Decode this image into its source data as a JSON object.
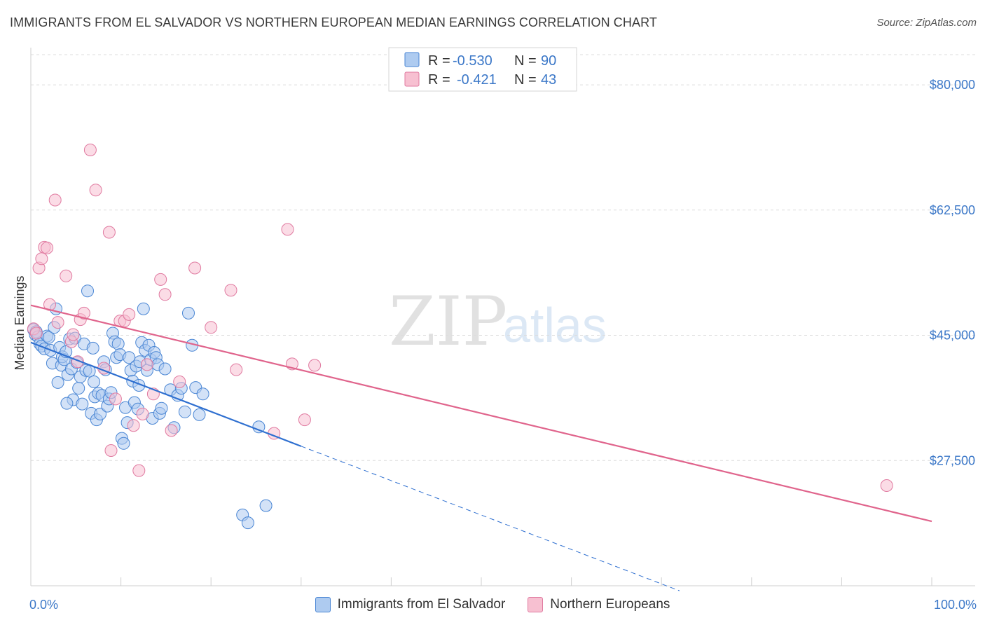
{
  "header": {
    "title": "IMMIGRANTS FROM EL SALVADOR VS NORTHERN EUROPEAN MEDIAN EARNINGS CORRELATION CHART",
    "source": "Source: ZipAtlas.com"
  },
  "watermark": {
    "zip": "ZIP",
    "atlas": "atlas"
  },
  "colors": {
    "blue_fill": "#aecbf0",
    "blue_stroke": "#4a86d4",
    "blue_line": "#2e6fd0",
    "pink_fill": "#f7c0d1",
    "pink_stroke": "#e07aa0",
    "pink_line": "#e0648c",
    "accent_text": "#3c78c8"
  },
  "chart_data": {
    "type": "scatter",
    "title": "IMMIGRANTS FROM EL SALVADOR VS NORTHERN EUROPEAN MEDIAN EARNINGS CORRELATION CHART",
    "xlabel": "",
    "ylabel": "Median Earnings",
    "xlim": [
      0,
      100
    ],
    "ylim": [
      10000,
      85000
    ],
    "x_tick_labels": [
      "0.0%",
      "100.0%"
    ],
    "y_ticks": [
      27500,
      45000,
      62500,
      80000
    ],
    "y_tick_labels": [
      "$27,500",
      "$45,000",
      "$62,500",
      "$80,000"
    ],
    "grid": true,
    "legend_stats": [
      {
        "r_label": "R =",
        "r_value": "-0.530",
        "n_label": "N =",
        "n_value": "90"
      },
      {
        "r_label": "R =",
        "r_value": "-0.421",
        "n_label": "N =",
        "n_value": "43"
      }
    ],
    "series": [
      {
        "name": "Immigrants from El Salvador",
        "r": -0.53,
        "n": 90,
        "trend": {
          "x0": 0,
          "y0": 44000,
          "x1": 30,
          "y1": 29500,
          "dash_x1": 72,
          "dash_y1": 9300
        },
        "points": [
          [
            0.3,
            45800
          ],
          [
            0.5,
            45100
          ],
          [
            0.6,
            45500
          ],
          [
            0.8,
            44800
          ],
          [
            1.0,
            43800
          ],
          [
            1.2,
            43500
          ],
          [
            1.5,
            43100
          ],
          [
            1.8,
            44900
          ],
          [
            2.0,
            44700
          ],
          [
            2.2,
            42900
          ],
          [
            2.4,
            41100
          ],
          [
            2.6,
            46100
          ],
          [
            2.8,
            48700
          ],
          [
            3.0,
            38400
          ],
          [
            3.2,
            43300
          ],
          [
            3.4,
            40800
          ],
          [
            3.5,
            42000
          ],
          [
            3.7,
            41600
          ],
          [
            3.9,
            42700
          ],
          [
            4.1,
            39500
          ],
          [
            4.3,
            44500
          ],
          [
            4.5,
            40300
          ],
          [
            4.7,
            36000
          ],
          [
            4.9,
            44600
          ],
          [
            5.1,
            41200
          ],
          [
            5.3,
            37600
          ],
          [
            5.5,
            39200
          ],
          [
            5.7,
            35400
          ],
          [
            5.9,
            43800
          ],
          [
            6.1,
            40100
          ],
          [
            6.3,
            51200
          ],
          [
            6.5,
            40000
          ],
          [
            6.7,
            34100
          ],
          [
            6.9,
            43200
          ],
          [
            7.1,
            36400
          ],
          [
            7.3,
            33200
          ],
          [
            7.5,
            36900
          ],
          [
            7.7,
            34000
          ],
          [
            7.9,
            36600
          ],
          [
            8.1,
            41300
          ],
          [
            8.3,
            40200
          ],
          [
            8.5,
            35100
          ],
          [
            8.7,
            36100
          ],
          [
            8.9,
            37000
          ],
          [
            9.1,
            45300
          ],
          [
            9.3,
            44100
          ],
          [
            9.5,
            41900
          ],
          [
            9.7,
            43800
          ],
          [
            9.9,
            42300
          ],
          [
            10.1,
            30600
          ],
          [
            10.3,
            29900
          ],
          [
            10.5,
            34900
          ],
          [
            10.7,
            32800
          ],
          [
            10.9,
            41900
          ],
          [
            11.1,
            40100
          ],
          [
            11.3,
            38600
          ],
          [
            11.5,
            35600
          ],
          [
            11.7,
            40700
          ],
          [
            11.9,
            34700
          ],
          [
            12.1,
            41300
          ],
          [
            12.3,
            44000
          ],
          [
            12.5,
            48700
          ],
          [
            12.7,
            42900
          ],
          [
            12.9,
            40100
          ],
          [
            13.1,
            43600
          ],
          [
            13.3,
            41600
          ],
          [
            13.5,
            33400
          ],
          [
            13.7,
            42600
          ],
          [
            13.9,
            41900
          ],
          [
            14.1,
            40900
          ],
          [
            14.3,
            34100
          ],
          [
            14.5,
            34800
          ],
          [
            14.9,
            40300
          ],
          [
            15.5,
            37400
          ],
          [
            15.9,
            32100
          ],
          [
            16.3,
            36600
          ],
          [
            16.7,
            37600
          ],
          [
            17.1,
            34300
          ],
          [
            17.5,
            48100
          ],
          [
            17.9,
            43600
          ],
          [
            18.3,
            37700
          ],
          [
            18.7,
            33900
          ],
          [
            19.1,
            36800
          ],
          [
            23.5,
            19900
          ],
          [
            24.1,
            18800
          ],
          [
            25.3,
            32200
          ],
          [
            26.1,
            21200
          ],
          [
            4.0,
            35500
          ],
          [
            7.0,
            38500
          ],
          [
            12.0,
            38000
          ]
        ]
      },
      {
        "name": "Northern Europeans",
        "r": -0.421,
        "n": 43,
        "trend": {
          "x0": 0,
          "y0": 49200,
          "x1": 100,
          "y1": 19000
        },
        "points": [
          [
            0.3,
            45900
          ],
          [
            0.6,
            45300
          ],
          [
            0.9,
            54400
          ],
          [
            1.2,
            55700
          ],
          [
            1.5,
            57300
          ],
          [
            1.8,
            57200
          ],
          [
            2.1,
            49300
          ],
          [
            2.7,
            63900
          ],
          [
            3.9,
            53300
          ],
          [
            4.5,
            44100
          ],
          [
            4.7,
            45100
          ],
          [
            5.2,
            41300
          ],
          [
            5.5,
            47200
          ],
          [
            5.9,
            48100
          ],
          [
            6.6,
            70900
          ],
          [
            7.2,
            65300
          ],
          [
            8.1,
            40400
          ],
          [
            8.7,
            59400
          ],
          [
            8.9,
            28900
          ],
          [
            9.4,
            36100
          ],
          [
            9.9,
            47000
          ],
          [
            10.4,
            47000
          ],
          [
            10.9,
            47900
          ],
          [
            11.4,
            32400
          ],
          [
            12.0,
            26100
          ],
          [
            12.4,
            34000
          ],
          [
            12.9,
            40900
          ],
          [
            13.6,
            36800
          ],
          [
            14.4,
            52800
          ],
          [
            14.9,
            50700
          ],
          [
            15.6,
            31700
          ],
          [
            16.5,
            38500
          ],
          [
            18.2,
            54400
          ],
          [
            20.0,
            46100
          ],
          [
            22.2,
            51300
          ],
          [
            22.8,
            40200
          ],
          [
            27.0,
            31300
          ],
          [
            28.5,
            59800
          ],
          [
            29.0,
            41000
          ],
          [
            30.4,
            33200
          ],
          [
            31.5,
            40800
          ],
          [
            95.0,
            24000
          ],
          [
            3.0,
            46800
          ]
        ]
      }
    ]
  },
  "bottom_legend": {
    "items": [
      {
        "label": "Immigrants from El Salvador"
      },
      {
        "label": "Northern Europeans"
      }
    ]
  }
}
